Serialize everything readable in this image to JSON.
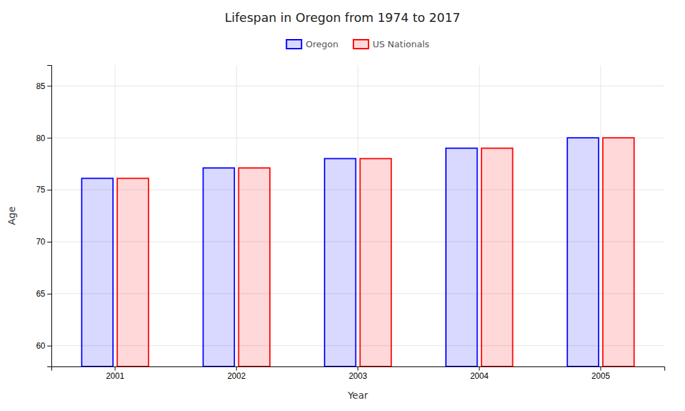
{
  "chart_data": {
    "type": "bar",
    "title": "Lifespan in Oregon from 1974 to 2017",
    "xlabel": "Year",
    "ylabel": "Age",
    "categories": [
      "2001",
      "2002",
      "2003",
      "2004",
      "2005"
    ],
    "series": [
      {
        "name": "Oregon",
        "color": "#0000ff",
        "values": [
          76.1,
          77.1,
          78.0,
          79.0,
          80.0
        ]
      },
      {
        "name": "US Nationals",
        "color": "#ff0000",
        "values": [
          76.1,
          77.1,
          78.0,
          79.0,
          80.0
        ]
      }
    ],
    "ylim": [
      58,
      87
    ],
    "yticks": [
      60,
      65,
      70,
      75,
      80,
      85
    ],
    "grid": true,
    "legend": "top"
  }
}
